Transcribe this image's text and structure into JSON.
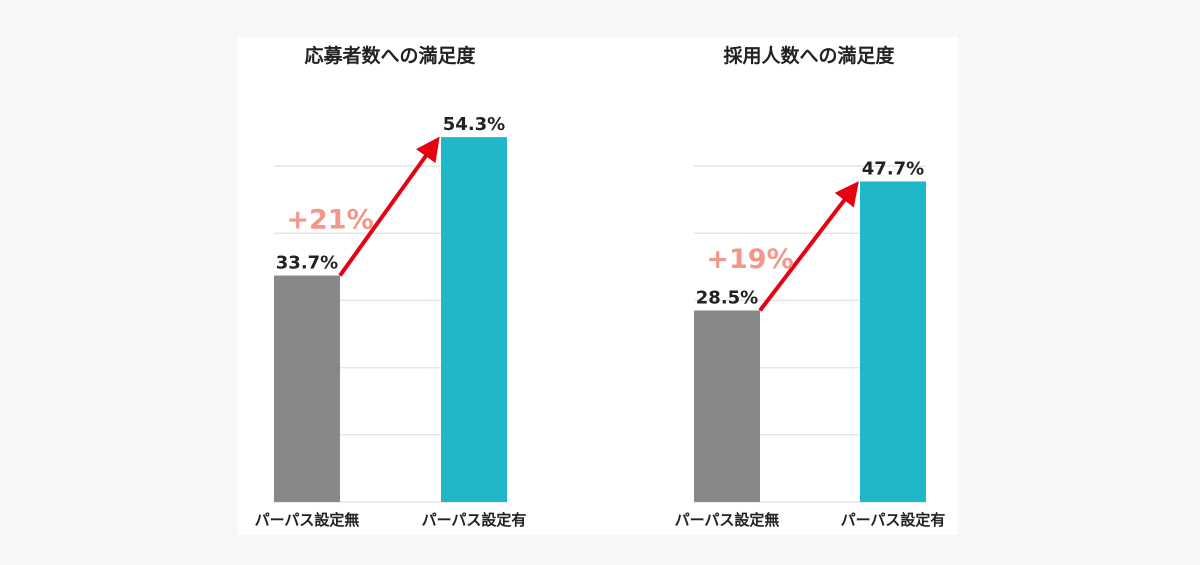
{
  "chart_data": [
    {
      "type": "bar",
      "title": "応募者数への満足度",
      "categories": [
        "パーパス設定無",
        "パーパス設定有"
      ],
      "values": [
        33.7,
        54.3
      ],
      "value_labels": [
        "33.7%",
        "54.3%"
      ],
      "annotation": "+21%",
      "ylim": [
        0,
        60
      ],
      "grid": true,
      "gridline_step": 10
    },
    {
      "type": "bar",
      "title": "採用人数への満足度",
      "categories": [
        "パーパス設定無",
        "パーパス設定有"
      ],
      "values": [
        28.5,
        47.7
      ],
      "value_labels": [
        "28.5%",
        "47.7%"
      ],
      "annotation": "+19%",
      "ylim": [
        0,
        60
      ],
      "grid": true,
      "gridline_step": 10
    }
  ],
  "colors": {
    "bar_without": "#888888",
    "bar_with": "#20b8c9",
    "arrow": "#e60012",
    "annotation": "#f4978a",
    "grid": "#e6e6e6"
  }
}
